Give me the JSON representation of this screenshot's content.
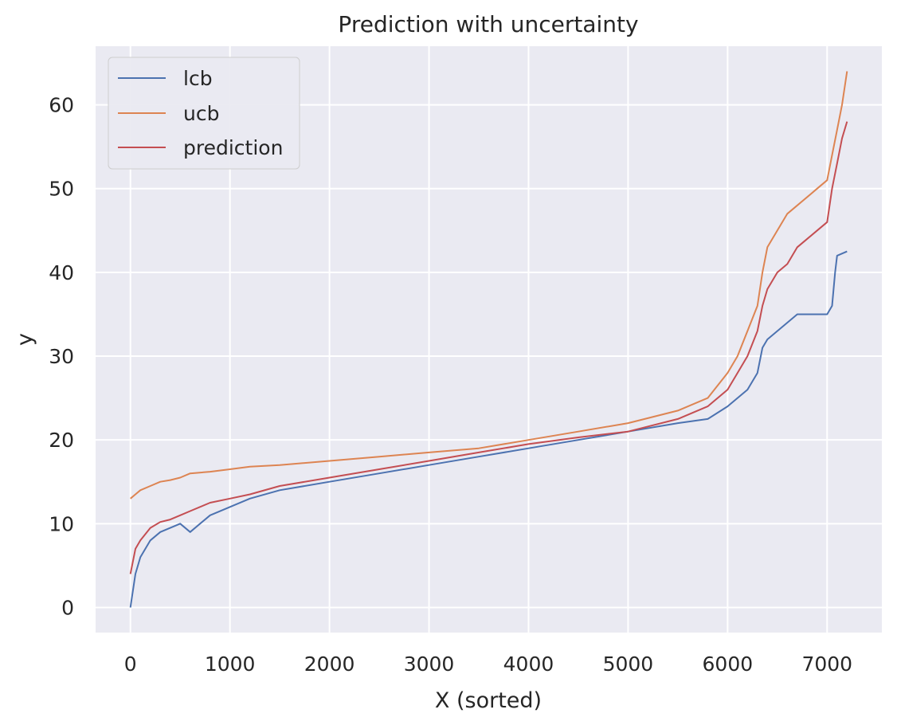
{
  "chart_data": {
    "type": "line",
    "title": "Prediction with uncertainty",
    "xlabel": "X (sorted)",
    "ylabel": "y",
    "xlim": [
      -350,
      7550
    ],
    "ylim": [
      -3,
      67
    ],
    "xticks": [
      0,
      1000,
      2000,
      3000,
      4000,
      5000,
      6000,
      7000
    ],
    "yticks": [
      0,
      10,
      20,
      30,
      40,
      50,
      60
    ],
    "grid": true,
    "legend_position": "top-left",
    "series": [
      {
        "name": "lcb",
        "color": "#4c72b0",
        "x": [
          0,
          50,
          100,
          200,
          300,
          500,
          600,
          800,
          1000,
          1200,
          1500,
          2000,
          2500,
          3000,
          3500,
          4000,
          4500,
          5000,
          5500,
          5800,
          6000,
          6200,
          6300,
          6350,
          6400,
          6500,
          6600,
          6700,
          6800,
          6900,
          7000,
          7050,
          7080,
          7100,
          7200
        ],
        "y": [
          0,
          4,
          6,
          8,
          9,
          10,
          9,
          11,
          12,
          13,
          14,
          15,
          16,
          17,
          18,
          19,
          20,
          21,
          22,
          22.5,
          24,
          26,
          28,
          31,
          32,
          33,
          34,
          35,
          35,
          35,
          35,
          36,
          40,
          42,
          42.5
        ]
      },
      {
        "name": "ucb",
        "color": "#dd8452",
        "x": [
          0,
          50,
          100,
          200,
          300,
          400,
          500,
          600,
          800,
          1000,
          1200,
          1500,
          2000,
          2500,
          3000,
          3500,
          4000,
          4500,
          5000,
          5500,
          5800,
          6000,
          6100,
          6200,
          6300,
          6350,
          6400,
          6500,
          6600,
          6700,
          6800,
          6900,
          7000,
          7050,
          7100,
          7150,
          7200
        ],
        "y": [
          13,
          13.5,
          14,
          14.5,
          15,
          15.2,
          15.5,
          16,
          16.2,
          16.5,
          16.8,
          17,
          17.5,
          18,
          18.5,
          19,
          20,
          21,
          22,
          23.5,
          25,
          28,
          30,
          33,
          36,
          40,
          43,
          45,
          47,
          48,
          49,
          50,
          51,
          54,
          57,
          60,
          64
        ]
      },
      {
        "name": "prediction",
        "color": "#c44e52",
        "x": [
          0,
          50,
          100,
          200,
          300,
          400,
          500,
          600,
          800,
          1000,
          1200,
          1500,
          2000,
          2500,
          3000,
          3500,
          4000,
          4500,
          5000,
          5500,
          5800,
          6000,
          6100,
          6200,
          6300,
          6350,
          6400,
          6500,
          6600,
          6700,
          6800,
          6900,
          7000,
          7050,
          7100,
          7150,
          7200
        ],
        "y": [
          4,
          7,
          8,
          9.5,
          10.2,
          10.5,
          11,
          11.5,
          12.5,
          13,
          13.5,
          14.5,
          15.5,
          16.5,
          17.5,
          18.5,
          19.5,
          20.3,
          21,
          22.5,
          24,
          26,
          28,
          30,
          33,
          36,
          38,
          40,
          41,
          43,
          44,
          45,
          46,
          50,
          53,
          56,
          58
        ]
      }
    ]
  }
}
